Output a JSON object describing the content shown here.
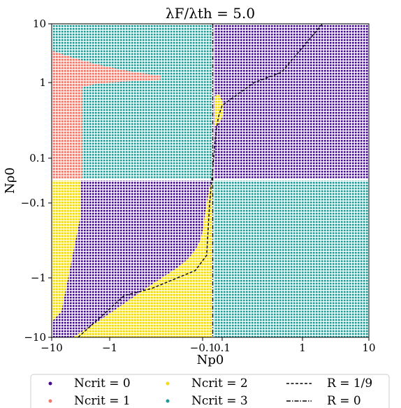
{
  "chart_data": {
    "type": "scatter",
    "title": "λF/λth = 5.0",
    "xlabel": "Np0",
    "ylabel": "Nρ0",
    "x_scale": "symlog",
    "y_scale": "symlog",
    "xlim": [
      -10,
      10
    ],
    "ylim": [
      -10,
      10
    ],
    "x_ticks": [
      "−10",
      "−1",
      "−0.1",
      "0.1",
      "1",
      "10"
    ],
    "y_ticks": [
      "−10",
      "−1",
      "−0.1",
      "0.1",
      "1",
      "10"
    ],
    "colors": {
      "ncrit0": "#440b8c",
      "ncrit1": "#ee7a6e",
      "ncrit2": "#f2dc1a",
      "ncrit3": "#1f9a97",
      "line": "#000000"
    },
    "legend": {
      "placement": "bottom-outside",
      "entries": [
        {
          "key": "ncrit0",
          "label": "Ncrit = 0",
          "marker": "dot"
        },
        {
          "key": "ncrit2",
          "label": "Ncrit = 2",
          "marker": "dot"
        },
        {
          "key": "r19",
          "label": "R = 1/9",
          "marker": "dashed"
        },
        {
          "key": "ncrit1",
          "label": "Ncrit = 1",
          "marker": "dot"
        },
        {
          "key": "ncrit3",
          "label": "Ncrit = 3",
          "marker": "dot"
        },
        {
          "key": "r0",
          "label": "R = 0",
          "marker": "dashdot"
        }
      ]
    },
    "series": [
      {
        "name": "R = 1/9",
        "style": "dashed",
        "segments": [
          [
            [
              -3.5,
              -10
            ],
            [
              -0.7,
              -2
            ],
            [
              -0.35,
              -1.5
            ],
            [
              -0.12,
              -0.8
            ],
            [
              -0.06,
              -0.5
            ],
            [
              -0.03,
              -0.1
            ],
            [
              0.01,
              0.1
            ],
            [
              0.03,
              0.2
            ],
            [
              0.06,
              0.35
            ],
            [
              0.1,
              0.5
            ],
            [
              0.25,
              1.0
            ],
            [
              0.55,
              1.5
            ],
            [
              2.0,
              10
            ]
          ]
        ]
      },
      {
        "name": "R = 0",
        "style": "dashdot",
        "x": 0
      }
    ],
    "regions": [
      {
        "category": "ncrit3",
        "quadrant": "top-left",
        "desc": "background"
      },
      {
        "category": "ncrit1",
        "quadrant": "top-left",
        "desc": "salmon region near x=-10 to -4"
      },
      {
        "category": "ncrit0",
        "quadrant": "top-right",
        "desc": "background"
      },
      {
        "category": "ncrit2",
        "quadrant": "top-right",
        "desc": "thin sliver near x=0.01-0.03, y=0.3-1"
      },
      {
        "category": "ncrit0",
        "quadrant": "bottom-left",
        "desc": "background"
      },
      {
        "category": "ncrit2",
        "quadrant": "bottom-left",
        "desc": "wedge along left edge and lower-right"
      },
      {
        "category": "ncrit3",
        "quadrant": "bottom-right",
        "desc": "background"
      }
    ]
  }
}
